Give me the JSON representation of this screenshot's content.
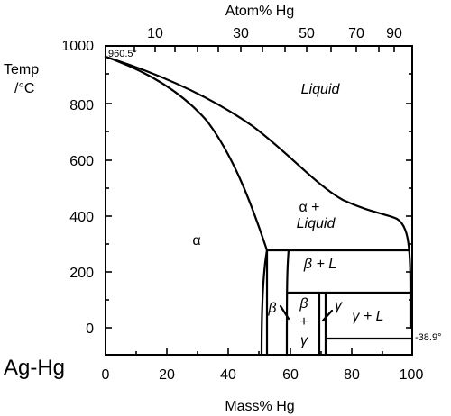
{
  "diagram": {
    "system": "Ag-Hg",
    "top_axis_title": "Atom% Hg",
    "top_axis_ticks": [
      "10",
      "30",
      "50",
      "70",
      "90"
    ],
    "bottom_axis_title": "Mass% Hg",
    "bottom_axis_ticks": [
      "0",
      "20",
      "40",
      "60",
      "80",
      "100"
    ],
    "y_axis_title_line1": "Temp",
    "y_axis_title_line2": "/°C",
    "y_axis_ticks": [
      "1000",
      "800",
      "600",
      "400",
      "200",
      "0"
    ],
    "annotations": {
      "ag_melting": "960.5°",
      "hg_melting": "-38.9°"
    },
    "phases": {
      "liquid": "Liquid",
      "alpha": "α",
      "alpha_plus": "α  +",
      "alpha_plus_liquid": "Liquid",
      "beta_plus_l": "β  +  L",
      "beta": "β",
      "beta_gamma_beta": "β",
      "beta_gamma_plus": "+",
      "beta_gamma_gamma": "γ",
      "gamma": "γ",
      "gamma_plus_l": "γ  +  L"
    }
  },
  "chart_data": {
    "type": "phase-diagram",
    "x_label": "Mass% Hg",
    "x_range": [
      0,
      100
    ],
    "x_ticks": [
      0,
      20,
      40,
      60,
      80,
      100
    ],
    "x2_label": "Atom% Hg",
    "x2_ticks": [
      10,
      30,
      50,
      70,
      90
    ],
    "y_label": "Temp /°C",
    "y_range": [
      -100,
      1000
    ],
    "y_ticks": [
      0,
      200,
      400,
      600,
      800,
      1000
    ],
    "points": {
      "ag_melting_point": {
        "mass_pct_hg": 0,
        "temp_c": 960.5
      },
      "hg_melting_point": {
        "mass_pct_hg": 100,
        "temp_c": -38.9
      }
    },
    "curves": {
      "liquidus": [
        [
          0,
          960
        ],
        [
          10,
          910
        ],
        [
          20,
          860
        ],
        [
          30,
          800
        ],
        [
          40,
          730
        ],
        [
          50,
          650
        ],
        [
          60,
          560
        ],
        [
          70,
          480
        ],
        [
          80,
          430
        ],
        [
          88,
          405
        ],
        [
          93,
          385
        ],
        [
          96,
          300
        ],
        [
          97,
          200
        ],
        [
          97,
          100
        ],
        [
          98,
          -38.9
        ]
      ],
      "solidus": [
        [
          0,
          960
        ],
        [
          10,
          890
        ],
        [
          20,
          810
        ],
        [
          30,
          720
        ],
        [
          38,
          620
        ],
        [
          44,
          500
        ],
        [
          48,
          400
        ],
        [
          51,
          330
        ],
        [
          53,
          280
        ]
      ],
      "alpha_solvus": [
        [
          53,
          280
        ],
        [
          52,
          230
        ],
        [
          51,
          150
        ],
        [
          51,
          60
        ],
        [
          51,
          -100
        ]
      ],
      "beta_left_boundary": [
        [
          54,
          280
        ],
        [
          54,
          200
        ],
        [
          54,
          100
        ],
        [
          54,
          0
        ],
        [
          54,
          -100
        ]
      ],
      "beta_right_boundary": [
        [
          56,
          280
        ],
        [
          56,
          200
        ],
        [
          56,
          100
        ],
        [
          56,
          0
        ],
        [
          56,
          -100
        ]
      ],
      "gamma_left_boundary": [
        [
          60,
          127
        ],
        [
          60,
          0
        ],
        [
          60,
          -100
        ]
      ],
      "gamma_right_boundary": [
        [
          61,
          127
        ],
        [
          61,
          0
        ],
        [
          61,
          -100
        ]
      ]
    },
    "invariant_temps_c": [
      276,
      127,
      -38.9
    ],
    "phase_regions": [
      "Liquid",
      "α",
      "α + Liquid",
      "β + L",
      "β",
      "β + γ",
      "γ",
      "γ + L"
    ]
  }
}
